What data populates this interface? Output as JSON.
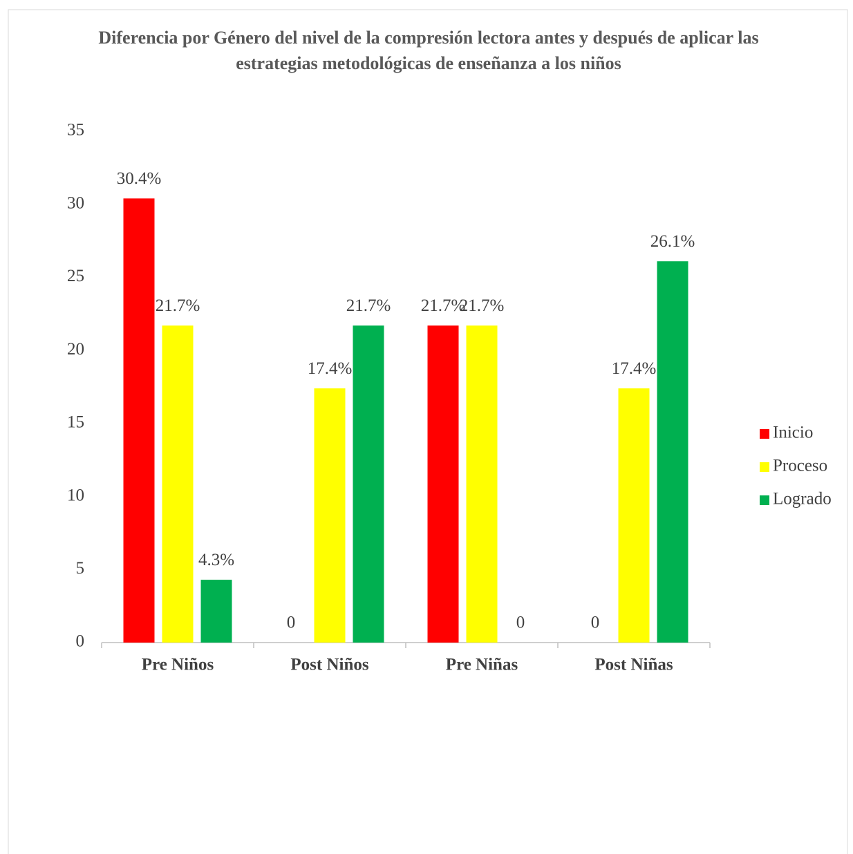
{
  "chart_data": {
    "type": "bar",
    "title": "Diferencia por Género del nivel de la compresión lectora antes y después de aplicar las estrategias metodológicas de enseñanza a los niños",
    "categories": [
      "Pre Niños",
      "Post Niños",
      "Pre Niñas",
      "Post Niñas"
    ],
    "series": [
      {
        "name": "Inicio",
        "color": "#ff0000",
        "values": [
          30.4,
          0,
          21.7,
          0
        ],
        "value_labels": [
          "30.4%",
          "0",
          "21.7%",
          "0"
        ]
      },
      {
        "name": "Proceso",
        "color": "#ffff00",
        "values": [
          21.7,
          17.4,
          21.7,
          17.4
        ],
        "value_labels": [
          "21.7%",
          "17.4%",
          "21.7%",
          "17.4%"
        ]
      },
      {
        "name": "Logrado",
        "color": "#00b050",
        "values": [
          4.3,
          21.7,
          0,
          26.1
        ],
        "value_labels": [
          "4.3%",
          "21.7%",
          "0",
          "26.1%"
        ]
      }
    ],
    "ylim": [
      0,
      35
    ],
    "yticks": [
      0,
      5,
      10,
      15,
      20,
      25,
      30,
      35
    ],
    "grid": false,
    "legend": "right"
  }
}
